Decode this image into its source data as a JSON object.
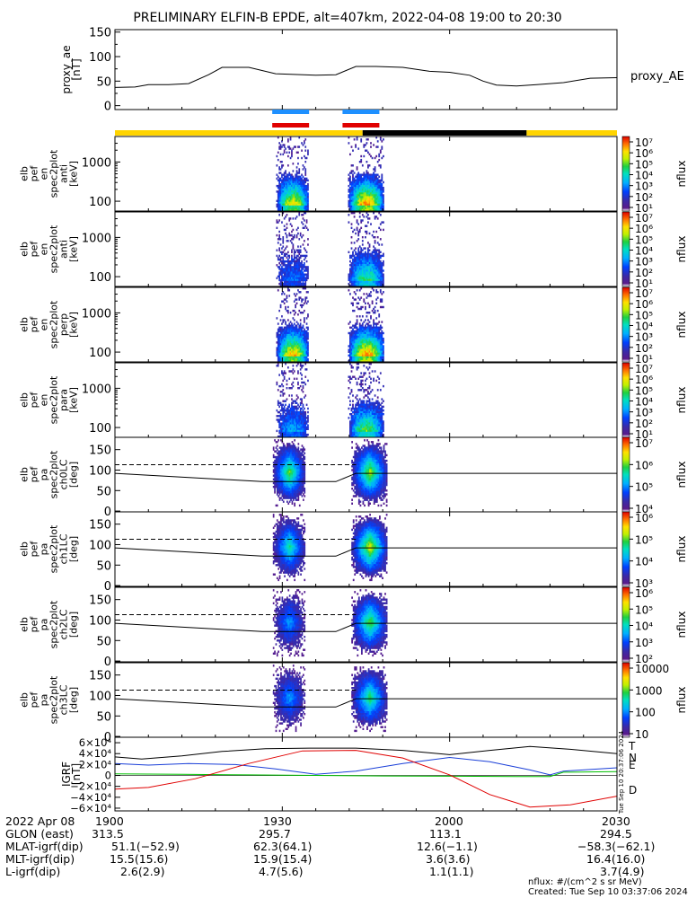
{
  "title": "PRELIMINARY ELFIN-B EPDE, alt=407km, 2022-04-08 19:00 to 20:30",
  "colors": {
    "state_yellow": "#ffd400",
    "state_black": "#000000",
    "marker_blue": "#1e90ff",
    "marker_red": "#e00000"
  },
  "chart_data": [
    {
      "type": "line",
      "panel": "proxy_ae",
      "ylabel": "proxy_ae [nT]",
      "legend": "proxy_AE",
      "ylim": [
        -8,
        155
      ],
      "yticks": [
        "0",
        "50",
        "100",
        "150"
      ],
      "x": [
        19.0,
        19.06,
        19.1,
        19.16,
        19.22,
        19.28,
        19.32,
        19.4,
        19.48,
        19.6,
        19.66,
        19.72,
        19.78,
        19.86,
        19.94,
        20.0,
        20.06,
        20.1,
        20.14,
        20.2,
        20.26,
        20.3,
        20.34,
        20.42,
        20.5
      ],
      "values": [
        37,
        38,
        43,
        43,
        45,
        63,
        78,
        78,
        65,
        62,
        63,
        80,
        80,
        78,
        70,
        68,
        62,
        50,
        42,
        40,
        43,
        45,
        47,
        56,
        57
      ]
    },
    {
      "type": "state_bar",
      "segments": [
        {
          "from": 19.0,
          "to": 19.74,
          "state": "yellow"
        },
        {
          "from": 19.74,
          "to": 20.23,
          "state": "black"
        },
        {
          "from": 20.23,
          "to": 20.5,
          "state": "yellow"
        }
      ],
      "markers": [
        {
          "from": 19.47,
          "to": 19.58,
          "colors": [
            "blue",
            "red"
          ]
        },
        {
          "from": 19.68,
          "to": 19.79,
          "colors": [
            "blue",
            "red"
          ]
        }
      ]
    },
    {
      "type": "heatmap",
      "panel": "anti",
      "ylabel": [
        "elb",
        "pef",
        "en",
        "spec2plot",
        "anti",
        "[keV]"
      ],
      "yticks": [
        "100",
        "1000"
      ],
      "colorbar_ticks": [
        "10⁷",
        "10⁶",
        "10⁵",
        "10⁴",
        "10³",
        "10²",
        "10¹"
      ],
      "colorbar_label": "nflux",
      "bursts": [
        {
          "center": 19.53,
          "peak": 0.75
        },
        {
          "center": 19.75,
          "peak": 0.85
        }
      ]
    },
    {
      "type": "heatmap",
      "panel": "anti",
      "ylabel": [
        "elb",
        "pef",
        "en",
        "spec2plot",
        "anti",
        "[keV]"
      ],
      "yticks": [
        "100",
        "1000"
      ],
      "colorbar_ticks": [
        "10⁷",
        "10⁶",
        "10⁵",
        "10⁴",
        "10³",
        "10²",
        "10¹"
      ],
      "colorbar_label": "nflux",
      "bursts": [
        {
          "center": 19.53,
          "peak": 0.25
        },
        {
          "center": 19.75,
          "peak": 0.55
        }
      ]
    },
    {
      "type": "heatmap",
      "panel": "perp",
      "ylabel": [
        "elb",
        "pef",
        "en",
        "spec2plot",
        "perp",
        "[keV]"
      ],
      "yticks": [
        "100",
        "1000"
      ],
      "colorbar_ticks": [
        "10⁷",
        "10⁶",
        "10⁵",
        "10⁴",
        "10³",
        "10²",
        "10¹"
      ],
      "colorbar_label": "nflux",
      "bursts": [
        {
          "center": 19.53,
          "peak": 0.8
        },
        {
          "center": 19.75,
          "peak": 0.85
        }
      ]
    },
    {
      "type": "heatmap",
      "panel": "para",
      "ylabel": [
        "elb",
        "pef",
        "en",
        "spec2plot",
        "para",
        "[keV]"
      ],
      "yticks": [
        "100",
        "1000"
      ],
      "colorbar_ticks": [
        "10⁷",
        "10⁶",
        "10⁵",
        "10⁴",
        "10³",
        "10²",
        "10¹"
      ],
      "colorbar_label": "nflux",
      "bursts": [
        {
          "center": 19.53,
          "peak": 0.35
        },
        {
          "center": 19.75,
          "peak": 0.6
        }
      ]
    },
    {
      "type": "heatmap",
      "panel": "ch0LC",
      "ylabel": [
        "elb",
        "pef",
        "pa",
        "spec2plot",
        "ch0LC",
        "[deg]"
      ],
      "yticks": [
        "0",
        "50",
        "100",
        "150"
      ],
      "colorbar_ticks": [
        "10⁷",
        "10⁶",
        "10⁵",
        "10⁴"
      ],
      "colorbar_label": "nflux",
      "bursts": [
        {
          "center": 19.52,
          "peak": 0.55
        },
        {
          "center": 19.76,
          "peak": 0.6
        }
      ]
    },
    {
      "type": "heatmap",
      "panel": "ch1LC",
      "ylabel": [
        "elb",
        "pef",
        "pa",
        "spec2plot",
        "ch1LC",
        "[deg]"
      ],
      "yticks": [
        "0",
        "50",
        "100",
        "150"
      ],
      "colorbar_ticks": [
        "10⁶",
        "10⁵",
        "10⁴",
        "10³"
      ],
      "colorbar_label": "nflux",
      "bursts": [
        {
          "center": 19.52,
          "peak": 0.45
        },
        {
          "center": 19.76,
          "peak": 0.65
        }
      ]
    },
    {
      "type": "heatmap",
      "panel": "ch2LC",
      "ylabel": [
        "elb",
        "pef",
        "pa",
        "spec2plot",
        "ch2LC",
        "[deg]"
      ],
      "yticks": [
        "0",
        "50",
        "100",
        "150"
      ],
      "colorbar_ticks": [
        "10⁶",
        "10⁵",
        "10⁴",
        "10³",
        "10²"
      ],
      "colorbar_label": "nflux",
      "bursts": [
        {
          "center": 19.52,
          "peak": 0.3
        },
        {
          "center": 19.76,
          "peak": 0.55
        }
      ]
    },
    {
      "type": "heatmap",
      "panel": "ch3LC",
      "ylabel": [
        "elb",
        "pef",
        "pa",
        "spec2plot",
        "ch3LC",
        "[deg]"
      ],
      "yticks": [
        "0",
        "50",
        "100",
        "150"
      ],
      "colorbar_ticks": [
        "10000",
        "1000",
        "100",
        "10"
      ],
      "colorbar_label": "nflux",
      "bursts": [
        {
          "center": 19.52,
          "peak": 0.3
        },
        {
          "center": 19.76,
          "peak": 0.5
        }
      ]
    },
    {
      "type": "line",
      "panel": "IGRF",
      "ylabel": "IGRF [nT]",
      "yticks": [
        "−6×10⁴",
        "−4×10⁴",
        "−2×10⁴",
        "0",
        "2×10⁴",
        "4×10⁴",
        "6×10⁴"
      ],
      "ylim": [
        -65000,
        70000
      ],
      "series": [
        {
          "name": "T",
          "color": "#000000",
          "x": [
            19.0,
            19.08,
            19.2,
            19.32,
            19.45,
            19.58,
            19.72,
            19.86,
            20.0,
            20.12,
            20.24,
            20.36,
            20.5
          ],
          "values": [
            34000,
            30000,
            36000,
            44000,
            49000,
            50000,
            50000,
            46000,
            38000,
            46000,
            53000,
            48000,
            40000
          ]
        },
        {
          "name": "N",
          "color": "#1a3fd8",
          "x": [
            19.0,
            19.1,
            19.22,
            19.36,
            19.48,
            19.6,
            19.72,
            19.86,
            20.0,
            20.12,
            20.24,
            20.3,
            20.34,
            20.5
          ],
          "values": [
            22000,
            19000,
            22000,
            20000,
            12000,
            2000,
            8000,
            22000,
            33000,
            25000,
            10000,
            1000,
            8000,
            14000
          ]
        },
        {
          "name": "E",
          "color": "#00c000",
          "x": [
            19.0,
            19.2,
            19.4,
            19.6,
            19.8,
            20.0,
            20.2,
            20.3,
            20.34,
            20.5
          ],
          "values": [
            3000,
            2000,
            1000,
            0,
            -1000,
            -1500,
            -2000,
            -2000,
            6000,
            7000
          ]
        },
        {
          "name": "D",
          "color": "#e00000",
          "x": [
            19.0,
            19.1,
            19.24,
            19.4,
            19.56,
            19.72,
            19.86,
            20.0,
            20.12,
            20.24,
            20.36,
            20.5
          ],
          "values": [
            -25000,
            -22000,
            -6000,
            22000,
            45000,
            46000,
            32000,
            1000,
            -35000,
            -58000,
            -54000,
            -38000
          ]
        }
      ]
    }
  ],
  "x_axis": {
    "ticks": [
      "1900",
      "1930",
      "2000",
      "2030"
    ],
    "date": "2022 Apr 08"
  },
  "orbit_table": [
    {
      "label": "GLON (east)",
      "values": [
        "313.5",
        "295.7",
        "113.1",
        "294.5"
      ]
    },
    {
      "label": "MLAT-igrf(dip)",
      "values": [
        "51.1(−52.9)",
        "62.3(64.1)",
        "12.6(−1.1)",
        "−58.3(−62.1)"
      ]
    },
    {
      "label": "MLT-igrf(dip)",
      "values": [
        "15.5(15.6)",
        "15.9(15.4)",
        "3.6(3.6)",
        "16.4(16.0)"
      ]
    },
    {
      "label": "L-igrf(dip)",
      "values": [
        "2.6(2.9)",
        "4.7(5.6)",
        "1.1(1.1)",
        "3.7(4.9)"
      ]
    }
  ],
  "footer": {
    "units": "nflux: #/(cm^2 s sr MeV)",
    "created": "Created: Tue Sep 10 03:37:06 2024",
    "stamp": "Tue Sep 10 20:37:06 2024"
  }
}
